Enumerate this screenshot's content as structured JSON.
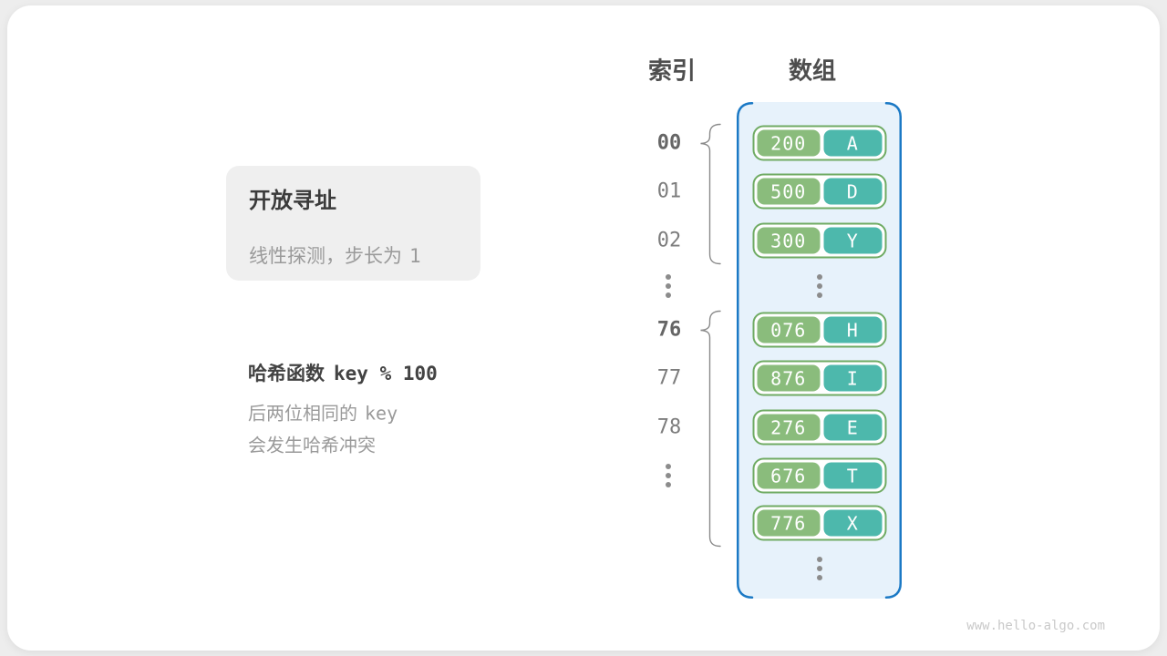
{
  "watermark": "www.hello-algo.com",
  "info_card": {
    "title": "开放寻址",
    "subtitle_text": "线性探测，步长为",
    "subtitle_number": "1"
  },
  "note": {
    "hash_label": "哈希函数",
    "hash_code": "key % 100",
    "line2_text": "后两位相同的",
    "line2_code": "key",
    "line3_text": "会发生哈希冲突"
  },
  "headers": {
    "index": "索引",
    "array": "数组"
  },
  "rows": [
    {
      "index": "00",
      "index_bold": true,
      "key": "200",
      "value": "A"
    },
    {
      "index": "01",
      "key": "500",
      "value": "D"
    },
    {
      "index": "02",
      "key": "300",
      "value": "Y"
    },
    {
      "index_ellipsis": true,
      "cell_ellipsis": true
    },
    {
      "index": "76",
      "index_bold": true,
      "key": "076",
      "value": "H"
    },
    {
      "index": "77",
      "key": "876",
      "value": "I"
    },
    {
      "index": "78",
      "key": "276",
      "value": "E"
    },
    {
      "index_ellipsis": true,
      "key": "676",
      "value": "T"
    },
    {
      "key": "776",
      "value": "X"
    },
    {
      "cell_ellipsis": true
    }
  ],
  "colors": {
    "array_border": "#1b79c5",
    "array_fill": "#e7f2fb",
    "pair_border": "#6fab63",
    "key_fill": "#8abc7c",
    "value_fill": "#4db8ac",
    "brace": "#8a8a8a"
  }
}
